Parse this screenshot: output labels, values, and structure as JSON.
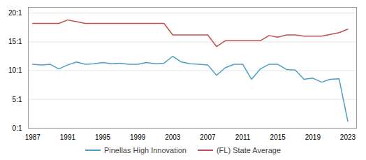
{
  "chart_data": {
    "type": "line",
    "x": [
      1987,
      1988,
      1989,
      1990,
      1991,
      1992,
      1993,
      1994,
      1995,
      1996,
      1997,
      1998,
      1999,
      2000,
      2001,
      2002,
      2003,
      2004,
      2005,
      2006,
      2007,
      2008,
      2009,
      2010,
      2011,
      2012,
      2013,
      2014,
      2015,
      2016,
      2017,
      2018,
      2019,
      2020,
      2021,
      2022,
      2023
    ],
    "series": [
      {
        "name": "Pinellas High Innovation",
        "color": "#4e9ec2",
        "values": [
          11.1,
          11.0,
          11.1,
          10.3,
          11.0,
          11.5,
          11.1,
          11.2,
          11.4,
          11.2,
          11.3,
          11.1,
          11.1,
          11.4,
          11.2,
          11.3,
          12.5,
          11.5,
          11.2,
          11.1,
          11.0,
          9.2,
          10.5,
          11.1,
          11.1,
          8.5,
          10.3,
          11.1,
          11.1,
          10.2,
          10.1,
          8.5,
          8.7,
          8.0,
          8.5,
          8.6,
          1.2
        ]
      },
      {
        "name": "(FL) State Average",
        "color": "#c0504d",
        "values": [
          18.2,
          18.2,
          18.2,
          18.2,
          18.8,
          18.5,
          18.2,
          18.2,
          18.2,
          18.2,
          18.2,
          18.2,
          18.2,
          18.2,
          18.2,
          18.2,
          16.2,
          16.2,
          16.2,
          16.2,
          16.2,
          14.2,
          15.2,
          15.2,
          15.2,
          15.2,
          15.2,
          16.1,
          15.8,
          16.2,
          16.2,
          16.0,
          16.0,
          16.0,
          16.3,
          16.6,
          17.2
        ]
      }
    ],
    "xlim": [
      1986.5,
      2024
    ],
    "xticks": [
      1987,
      1991,
      1995,
      1999,
      2003,
      2007,
      2011,
      2015,
      2019,
      2023
    ],
    "ylim": [
      0,
      21
    ],
    "yticks": [
      {
        "value": 0,
        "label": "0:1"
      },
      {
        "value": 5,
        "label": "5:1"
      },
      {
        "value": 10,
        "label": "10:1"
      },
      {
        "value": 15,
        "label": "15:1"
      },
      {
        "value": 20,
        "label": "20:1"
      }
    ],
    "grid": "y",
    "legend": "bottom"
  }
}
